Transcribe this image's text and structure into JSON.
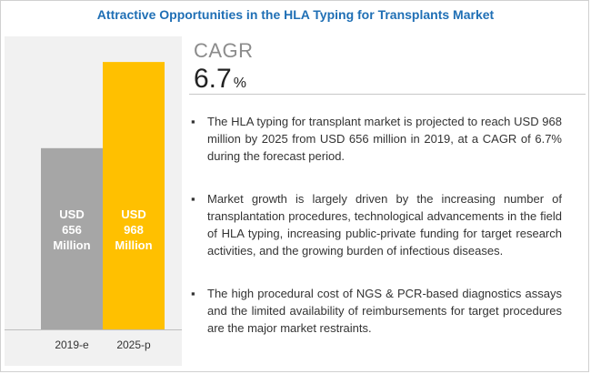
{
  "title": "Attractive Opportunities in the HLA Typing for Transplants Market",
  "cagr": {
    "label": "CAGR",
    "value": "6.7",
    "unit": "%"
  },
  "bullets": [
    "The HLA typing for transplant market is projected to reach USD 968 million by 2025 from USD 656 million in 2019, at a CAGR of 6.7% during the forecast period.",
    "Market growth is largely driven by the increasing number of transplantation procedures, technological advancements in the field of HLA typing, increasing public-private funding for target research activities, and the growing burden of infectious diseases.",
    "The high procedural cost of NGS & PCR-based diagnostics assays and the limited availability of reimbursements for target procedures are the major market restraints."
  ],
  "chart_data": {
    "type": "bar",
    "categories": [
      "2019-e",
      "2025-p"
    ],
    "values": [
      656,
      968
    ],
    "data_labels": [
      [
        "USD",
        "656",
        "Million"
      ],
      [
        "USD",
        "968",
        "Million"
      ]
    ],
    "unit": "USD Million",
    "ylim": [
      0,
      1000
    ],
    "grid": false,
    "colors": [
      "#a6a6a6",
      "#ffc000"
    ]
  }
}
